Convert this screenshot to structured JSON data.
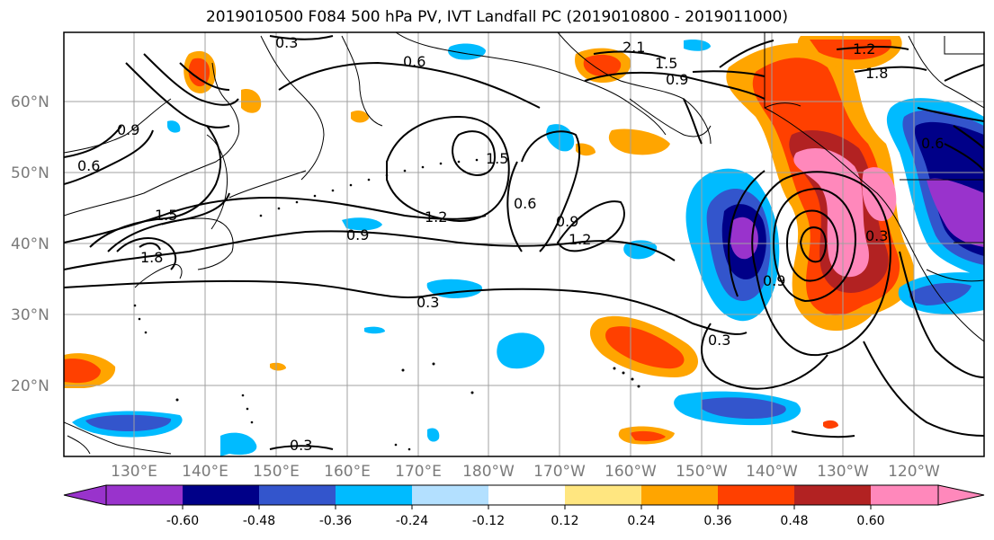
{
  "title": "2019010500 F084 500 hPa PV, IVT Landfall PC (2019010800 - 2019011000)",
  "map": {
    "lat_labels": [
      "60°N",
      "50°N",
      "40°N",
      "30°N",
      "20°N"
    ],
    "lon_labels": [
      "130°E",
      "140°E",
      "150°E",
      "160°E",
      "170°E",
      "180°W",
      "170°W",
      "160°W",
      "150°W",
      "140°W",
      "130°W",
      "120°W"
    ],
    "contour_labels": [
      "0.3",
      "0.6",
      "0.9",
      "1.2",
      "1.5",
      "1.8",
      "2.1"
    ]
  },
  "colorbar": {
    "ticks": [
      "-0.60",
      "-0.48",
      "-0.36",
      "-0.24",
      "-0.12",
      "0.12",
      "0.24",
      "0.36",
      "0.48",
      "0.60"
    ],
    "colors": [
      "#9933cc",
      "#000088",
      "#3355cc",
      "#00bbff",
      "#b3e0ff",
      "#ffffff",
      "#ffe680",
      "#ffa500",
      "#ff4000",
      "#b22222",
      "#ff88bb"
    ]
  },
  "colors": {
    "contour": "#000000",
    "grid": "#a0a0a0",
    "coast": "#000000"
  }
}
